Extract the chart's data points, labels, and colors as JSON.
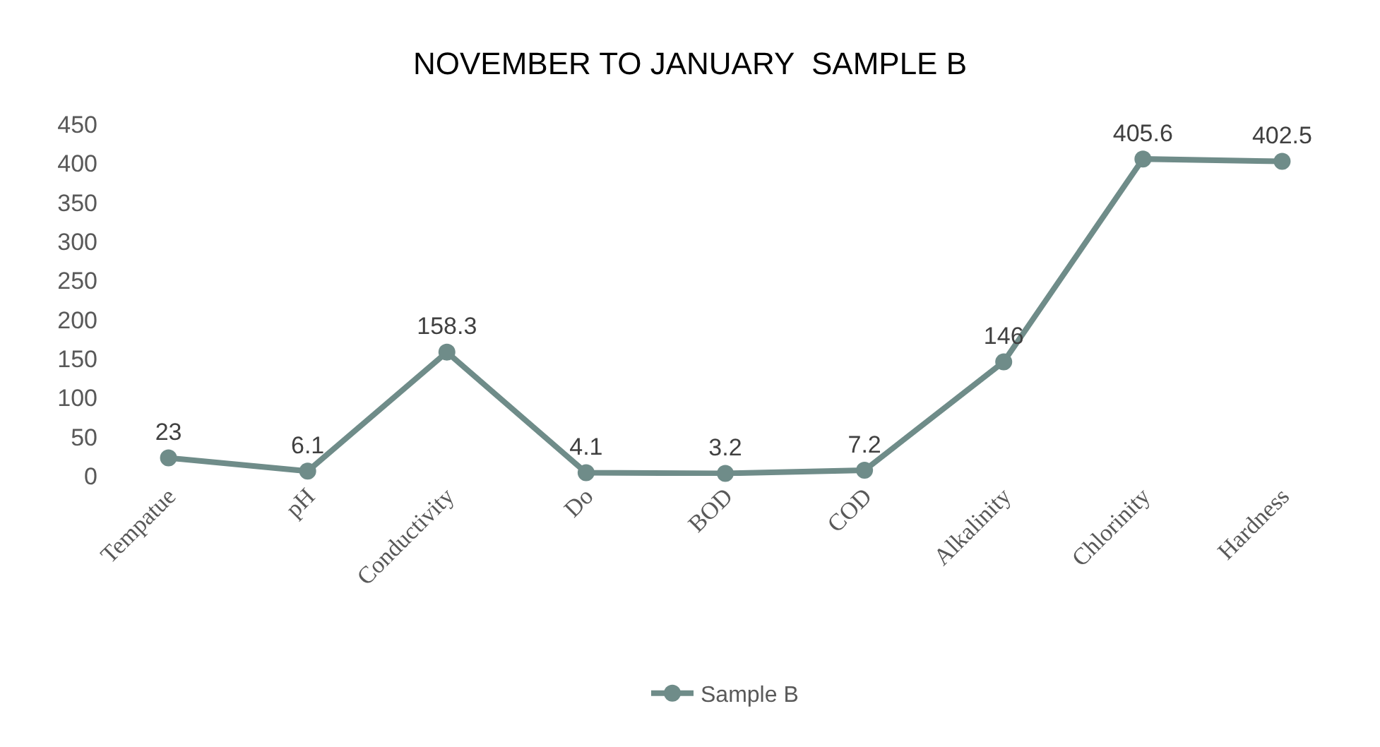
{
  "chart_data": {
    "type": "line",
    "title": "NOVEMBER TO JANUARY  SAMPLE B",
    "categories": [
      "Tempatue",
      "pH",
      "Conductivity",
      "Do",
      "BOD",
      "COD",
      "Alkalinity",
      "Chlorinity",
      "Hardness"
    ],
    "series": [
      {
        "name": "Sample B",
        "color": "#6f8c89",
        "values": [
          23,
          6.1,
          158.3,
          4.1,
          3.2,
          7.2,
          146,
          405.6,
          402.5
        ]
      }
    ],
    "ylim": [
      0,
      450
    ],
    "yticks": [
      0,
      50,
      100,
      150,
      200,
      250,
      300,
      350,
      400,
      450
    ],
    "grid": false,
    "legend": "bottom",
    "marker": "circle",
    "line_style": "solid",
    "data_labels": true
  }
}
